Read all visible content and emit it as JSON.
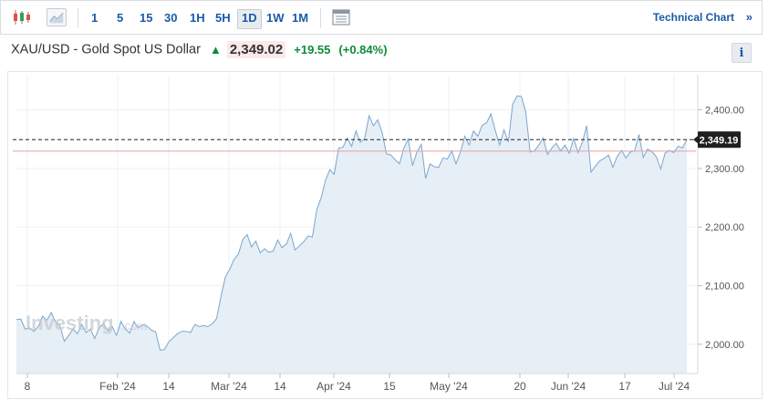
{
  "toolbar": {
    "timeframes": [
      "1",
      "5",
      "15",
      "30",
      "1H",
      "5H",
      "1D",
      "1W",
      "1M"
    ],
    "active_timeframe": "1D",
    "technical_chart_label": "Technical Chart",
    "technical_chart_arrow": "»"
  },
  "header": {
    "instrument": "XAU/USD - Gold Spot US Dollar",
    "last_price": "2,349.02",
    "change": "+19.55",
    "change_pct": "(+0.84%)",
    "info_label": "i"
  },
  "watermark": {
    "text": "Investing",
    "suffix": ".com"
  },
  "chart_data": {
    "type": "area",
    "x_ticks": [
      "8",
      "Feb '24",
      "14",
      "Mar '24",
      "14",
      "Apr '24",
      "15",
      "May '24",
      "20",
      "Jun '24",
      "17",
      "Jul '24"
    ],
    "y_ticks": [
      "2,000.00",
      "2,100.00",
      "2,200.00",
      "2,300.00",
      "2,400.00"
    ],
    "y_tick_values": [
      2000,
      2100,
      2200,
      2300,
      2400
    ],
    "ylim": [
      1950,
      2460
    ],
    "current_price_label": "2,349.19",
    "current_price": 2349.19,
    "previous_close": 2329.5,
    "line_color": "#7aa7cf",
    "fill_color": "#e6eef6",
    "prev_close_color": "#e8a1a1",
    "values": [
      2042,
      2043,
      2026,
      2028,
      2022,
      2030,
      2048,
      2041,
      2054,
      2038,
      2032,
      2005,
      2015,
      2026,
      2018,
      2034,
      2020,
      2026,
      2010,
      2028,
      2035,
      2023,
      2030,
      2015,
      2039,
      2026,
      2019,
      2039,
      2028,
      2033,
      2031,
      2024,
      2021,
      1990,
      1991,
      2004,
      2011,
      2018,
      2022,
      2022,
      2020,
      2034,
      2030,
      2032,
      2030,
      2035,
      2044,
      2082,
      2115,
      2128,
      2145,
      2154,
      2179,
      2187,
      2166,
      2176,
      2156,
      2163,
      2157,
      2159,
      2178,
      2165,
      2171,
      2189,
      2161,
      2168,
      2175,
      2185,
      2183,
      2230,
      2250,
      2280,
      2298,
      2290,
      2335,
      2336,
      2352,
      2338,
      2364,
      2345,
      2351,
      2390,
      2373,
      2383,
      2362,
      2325,
      2323,
      2315,
      2308,
      2335,
      2350,
      2305,
      2328,
      2341,
      2283,
      2308,
      2303,
      2302,
      2318,
      2316,
      2330,
      2308,
      2328,
      2355,
      2340,
      2364,
      2355,
      2374,
      2378,
      2393,
      2365,
      2340,
      2366,
      2345,
      2410,
      2424,
      2423,
      2397,
      2328,
      2330,
      2340,
      2352,
      2324,
      2335,
      2343,
      2330,
      2340,
      2326,
      2351,
      2327,
      2345,
      2373,
      2294,
      2304,
      2313,
      2317,
      2323,
      2302,
      2320,
      2331,
      2318,
      2328,
      2330,
      2358,
      2319,
      2333,
      2329,
      2320,
      2299,
      2326,
      2331,
      2327,
      2338,
      2335,
      2349
    ]
  }
}
